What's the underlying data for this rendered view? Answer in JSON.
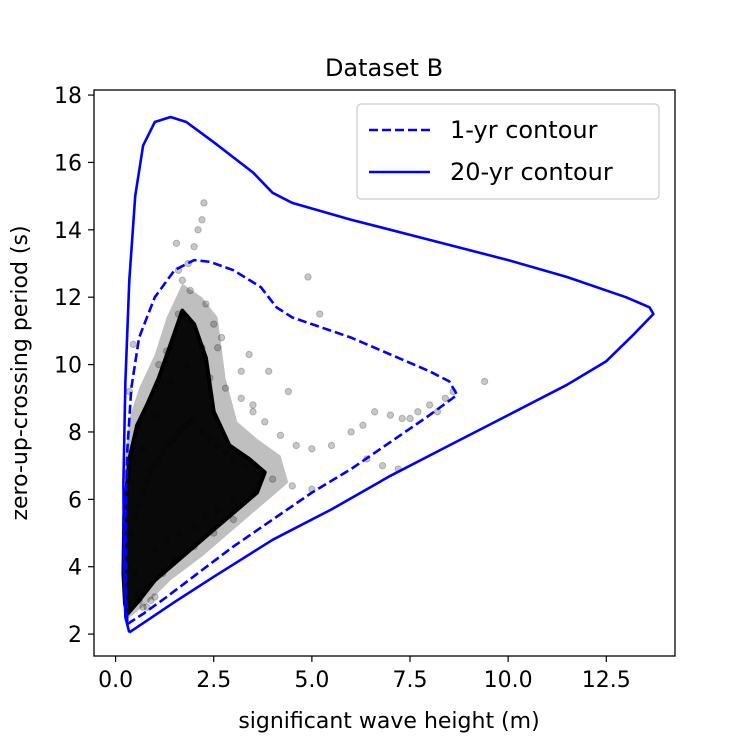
{
  "chart_data": {
    "type": "scatter",
    "title": "Dataset B",
    "xlabel": "significant wave height (m)",
    "ylabel": "zero-up-crossing period (s)",
    "xlim": [
      -0.55,
      14.25
    ],
    "ylim": [
      1.35,
      18.15
    ],
    "xticks": [
      0,
      2.5,
      5,
      7.5,
      10,
      12.5
    ],
    "xtick_labels": [
      "0.0",
      "2.5",
      "5.0",
      "7.5",
      "10.0",
      "12.5"
    ],
    "yticks": [
      2,
      4,
      6,
      8,
      10,
      12,
      14,
      16,
      18
    ],
    "ytick_labels": [
      "2",
      "4",
      "6",
      "8",
      "10",
      "12",
      "14",
      "16",
      "18"
    ],
    "grid": false,
    "legend_position": "upper right",
    "series": [
      {
        "name": "1-yr contour",
        "kind": "line",
        "style": "dashed",
        "color": "#0000ff",
        "x": [
          0.3,
          0.7,
          1.3,
          2.2,
          3.0,
          4.0,
          5.0,
          6.0,
          7.0,
          8.0,
          8.7,
          8.5,
          8.0,
          7.0,
          6.0,
          4.5,
          4.1,
          3.7,
          3.0,
          2.4,
          2.0,
          1.5,
          1.0,
          0.6,
          0.4,
          0.3,
          0.25,
          0.26,
          0.3
        ],
        "y": [
          2.3,
          2.6,
          3.1,
          3.9,
          4.6,
          5.4,
          6.2,
          6.9,
          7.7,
          8.5,
          9.1,
          9.5,
          9.8,
          10.3,
          10.8,
          11.4,
          11.7,
          12.3,
          12.8,
          13.05,
          13.1,
          12.8,
          12.0,
          10.8,
          9.3,
          7.5,
          5.5,
          3.5,
          2.3
        ]
      },
      {
        "name": "20-yr contour",
        "kind": "line",
        "style": "solid",
        "color": "#0000ff",
        "x": [
          0.35,
          0.8,
          1.5,
          2.5,
          4.0,
          5.5,
          7.0,
          8.5,
          10.0,
          11.5,
          12.5,
          13.2,
          13.7,
          13.6,
          13.0,
          11.5,
          10.0,
          8.0,
          6.0,
          4.5,
          4.0,
          3.5,
          2.5,
          1.8,
          1.4,
          1.0,
          0.7,
          0.5,
          0.35,
          0.25,
          0.2,
          0.21,
          0.25,
          0.35
        ],
        "y": [
          2.05,
          2.4,
          2.95,
          3.7,
          4.8,
          5.7,
          6.7,
          7.6,
          8.5,
          9.4,
          10.1,
          10.9,
          11.5,
          11.7,
          12.0,
          12.6,
          13.1,
          13.7,
          14.3,
          14.8,
          15.1,
          15.7,
          16.6,
          17.2,
          17.35,
          17.2,
          16.5,
          15.0,
          12.5,
          9.5,
          6.5,
          4.0,
          2.5,
          2.05
        ]
      },
      {
        "name": "",
        "kind": "scatter",
        "color": "#000000",
        "alpha": 0.22,
        "x": [
          0.3,
          0.4,
          0.5,
          0.6,
          0.7,
          0.8,
          0.9,
          1.0,
          1.1,
          1.2,
          1.3,
          1.4,
          1.5,
          1.6,
          1.7,
          1.8,
          1.9,
          2.0,
          2.2,
          2.4,
          2.6,
          2.8,
          3.0,
          3.3,
          3.6,
          4.0,
          4.5,
          5.0,
          1.0,
          1.3,
          1.6,
          2.0,
          2.3,
          2.6,
          3.0,
          3.5,
          0.6,
          0.8,
          1.2,
          1.5,
          2.0,
          2.5,
          3.0,
          0.4,
          0.7,
          1.0,
          1.4,
          1.8,
          2.2,
          2.7,
          1.6,
          1.7,
          1.85,
          2.0,
          2.1,
          2.2,
          2.25,
          1.55,
          1.6,
          1.9,
          2.3,
          2.5,
          2.6,
          2.4,
          3.2,
          3.5,
          3.8,
          4.2,
          4.6,
          5.0,
          5.5,
          6.0,
          6.3,
          6.6,
          7.0,
          7.3,
          7.5,
          7.7,
          8.0,
          8.2,
          8.4,
          8.6,
          9.4,
          4.9,
          5.2,
          6.4,
          6.8,
          7.2,
          3.4,
          3.9,
          4.4,
          0.5,
          0.55,
          0.7,
          0.9,
          0.35,
          0.45,
          1.1,
          1.3,
          2.8,
          3.2,
          3.5,
          0.8,
          1.0
        ],
        "y": [
          4.0,
          5.0,
          5.5,
          5.8,
          6.2,
          6.5,
          6.8,
          7.0,
          7.2,
          7.4,
          7.6,
          7.7,
          7.8,
          8.0,
          8.1,
          8.2,
          8.3,
          8.4,
          8.0,
          7.8,
          7.6,
          7.4,
          7.2,
          7.0,
          6.8,
          6.6,
          6.4,
          6.3,
          4.5,
          4.8,
          5.0,
          5.2,
          5.5,
          5.7,
          6.0,
          6.2,
          3.0,
          3.4,
          3.8,
          4.2,
          4.6,
          5.0,
          5.4,
          6.5,
          7.5,
          8.5,
          9.5,
          10.0,
          10.5,
          10.8,
          11.5,
          12.5,
          13.0,
          13.5,
          14.0,
          14.3,
          14.8,
          13.6,
          12.8,
          12.2,
          11.8,
          11.2,
          10.5,
          9.6,
          9.0,
          8.6,
          8.3,
          7.9,
          7.6,
          7.5,
          7.6,
          8.0,
          8.2,
          8.6,
          8.5,
          8.4,
          8.4,
          8.6,
          8.8,
          8.6,
          9.0,
          9.2,
          9.5,
          12.6,
          11.5,
          7.2,
          7.0,
          6.9,
          10.3,
          9.8,
          9.2,
          3.8,
          3.2,
          2.8,
          3.0,
          9.2,
          10.6,
          10.0,
          10.4,
          9.3,
          9.8,
          8.8,
          2.8,
          3.1
        ]
      }
    ]
  }
}
